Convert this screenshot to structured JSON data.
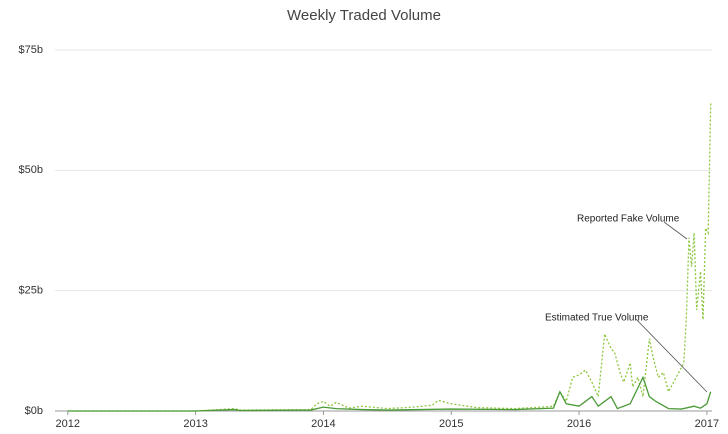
{
  "chart_data": {
    "type": "line",
    "title": "Weekly Traded Volume",
    "xlim": [
      2011.9,
      2017.04
    ],
    "xticks": [
      2012,
      2013,
      2014,
      2015,
      2016,
      2017
    ],
    "ylim": [
      0,
      75
    ],
    "yticks": [
      {
        "value": 0,
        "label": "$0b"
      },
      {
        "value": 25,
        "label": "$25b"
      },
      {
        "value": 50,
        "label": "$50b"
      },
      {
        "value": 75,
        "label": "$75b"
      }
    ],
    "grid": true,
    "series": [
      {
        "name": "Reported Fake Volume",
        "color": "#8cc63f",
        "style": "dashed",
        "x": [
          2012.0,
          2013.0,
          2013.3,
          2013.35,
          2013.9,
          2013.95,
          2014.0,
          2014.05,
          2014.1,
          2014.2,
          2014.3,
          2014.5,
          2014.7,
          2014.85,
          2014.9,
          2015.0,
          2015.2,
          2015.5,
          2015.7,
          2015.8,
          2015.85,
          2015.9,
          2015.95,
          2016.0,
          2016.05,
          2016.1,
          2016.15,
          2016.2,
          2016.25,
          2016.28,
          2016.32,
          2016.35,
          2016.4,
          2016.42,
          2016.46,
          2016.5,
          2016.55,
          2016.58,
          2016.62,
          2016.66,
          2016.7,
          2016.74,
          2016.78,
          2016.82,
          2016.84,
          2016.86,
          2016.88,
          2016.9,
          2016.92,
          2016.95,
          2016.97,
          2016.99,
          2017.01,
          2017.03
        ],
        "values": [
          0,
          0,
          0.5,
          0.2,
          0.3,
          1.5,
          2,
          1,
          1.8,
          0.6,
          1,
          0.5,
          0.8,
          1.2,
          2.2,
          1.5,
          0.7,
          0.5,
          0.8,
          1,
          4,
          2,
          7,
          7.5,
          8.5,
          6,
          3,
          16,
          13,
          12,
          8,
          6,
          10,
          5,
          7,
          3,
          15,
          11,
          7,
          8,
          4,
          6,
          8,
          10,
          20,
          36,
          30,
          37,
          21,
          29,
          19,
          38,
          37,
          64
        ]
      },
      {
        "name": "Estimated True Volume",
        "color": "#4a9a36",
        "style": "solid",
        "x": [
          2012.0,
          2013.0,
          2013.3,
          2013.35,
          2013.9,
          2014.0,
          2014.1,
          2014.3,
          2014.5,
          2015.0,
          2015.5,
          2015.8,
          2015.85,
          2015.9,
          2016.0,
          2016.1,
          2016.15,
          2016.25,
          2016.3,
          2016.4,
          2016.5,
          2016.55,
          2016.6,
          2016.7,
          2016.8,
          2016.9,
          2016.95,
          2017.0,
          2017.03
        ],
        "values": [
          0,
          0,
          0.3,
          0.1,
          0.2,
          0.8,
          0.5,
          0.3,
          0.2,
          0.4,
          0.3,
          0.6,
          4,
          1.5,
          1,
          3,
          1,
          3,
          0.5,
          1.5,
          7,
          3,
          2,
          0.5,
          0.4,
          1,
          0.6,
          1.5,
          4
        ]
      }
    ]
  }
}
